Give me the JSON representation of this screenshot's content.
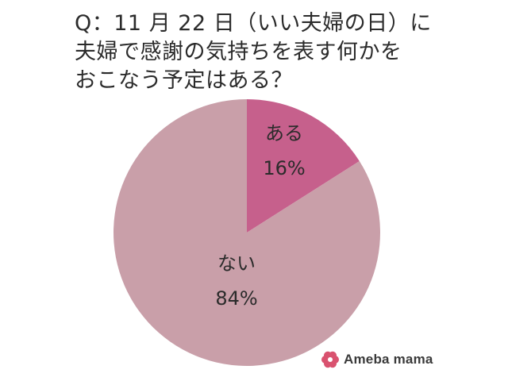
{
  "title_lines": [
    "Q：11 月 22 日（いい夫婦の日）に",
    "夫婦で感謝の気持ちを表す何かを",
    "おこなう予定はある？"
  ],
  "brand": {
    "name": "Ameba mama",
    "logo_icon": "flower-icon",
    "logo_color": "#d9526f"
  },
  "chart_data": {
    "type": "pie",
    "start": "12 o'clock, clockwise",
    "slices": [
      {
        "label": "ある",
        "value_label": "16%",
        "value": 16,
        "color": "#c6608c"
      },
      {
        "label": "ない",
        "value_label": "84%",
        "value": 84,
        "color": "#c99fa9"
      }
    ]
  }
}
